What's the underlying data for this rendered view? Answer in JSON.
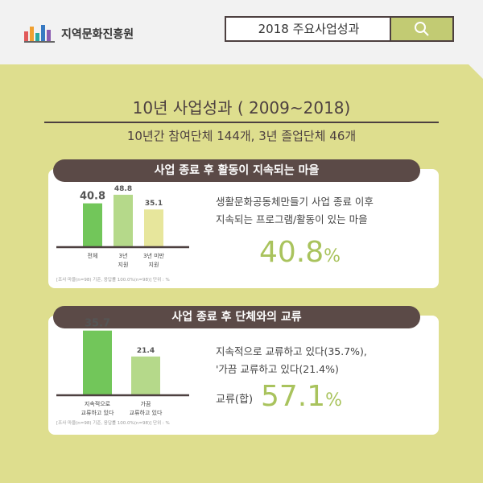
{
  "header": {
    "org_name": "지역문화진흥원",
    "search_label": "2018 주요사업성과"
  },
  "headline": {
    "title": "10년 사업성과 ( 2009~2018)",
    "subtitle": "10년간 참여단체 144개, 3년 졸업단체 46개"
  },
  "section1": {
    "title": "사업 종료 후 활동이 지속되는 마을",
    "description_line1": "생활문화공동체만들기 사업 종료 이후",
    "description_line2": "지속되는 프로그램/활동이 있는 마을",
    "big_value": "40.8",
    "big_unit": "%",
    "note": "[조사 마을(n=98) 기준, 응답률 100.0%(n=98)] 단위 : %"
  },
  "section2": {
    "title": "사업 종료 후 단체와의 교류",
    "description_line1": "지속적으로 교류하고 있다(35.7%),",
    "description_line2": "'가끔 교류하고 있다(21.4%)",
    "sum_label": "교류(합)",
    "big_value": "57.1",
    "big_unit": "%",
    "note": "[조사 마을(n=98) 기준, 응답률 100.0%(n=98)] 단위 : %"
  },
  "chart_data": [
    {
      "type": "bar",
      "categories": [
        [
          "전체"
        ],
        [
          "3년",
          "지원"
        ],
        [
          "3년 미만",
          "지원"
        ]
      ],
      "values": [
        40.8,
        48.8,
        35.1
      ],
      "data_labels": [
        "40.8",
        "48.8",
        "35.1"
      ],
      "colors": [
        "#72c65a",
        "#b5d98a",
        "#e7e69c"
      ],
      "ylim": [
        0,
        60
      ],
      "legend": "none",
      "grid": false
    },
    {
      "type": "bar",
      "categories": [
        [
          "지속적으로",
          "교류하고 있다"
        ],
        [
          "가끔",
          "교류하고 있다"
        ]
      ],
      "values": [
        35.7,
        21.4
      ],
      "data_labels": [
        "35.7",
        "21.4"
      ],
      "colors": [
        "#72c65a",
        "#b5d98a"
      ],
      "ylim": [
        0,
        40
      ],
      "legend": "none",
      "grid": false
    }
  ]
}
